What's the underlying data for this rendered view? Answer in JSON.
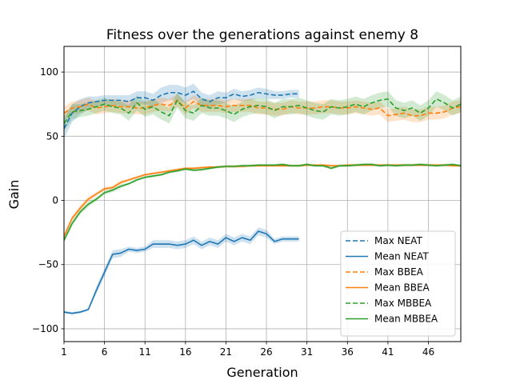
{
  "chart_data": {
    "type": "line",
    "title": "Fitness over the generations against enemy 8",
    "xlabel": "Generation",
    "ylabel": "Gain",
    "xlim": [
      1,
      50
    ],
    "ylim": [
      -110,
      120
    ],
    "xticks": [
      1,
      6,
      11,
      16,
      21,
      26,
      31,
      36,
      41,
      46
    ],
    "yticks": [
      -100,
      -50,
      0,
      50,
      100
    ],
    "grid": true,
    "legend_position": "lower-right",
    "series": [
      {
        "name": "Max NEAT",
        "color": "#1f77b4",
        "style": "dashed",
        "x": [
          1,
          2,
          3,
          4,
          5,
          6,
          7,
          8,
          9,
          10,
          11,
          12,
          13,
          14,
          15,
          16,
          17,
          18,
          19,
          20,
          21,
          22,
          23,
          24,
          25,
          26,
          27,
          28,
          29,
          30
        ],
        "values": [
          56,
          68,
          73,
          76,
          77,
          78,
          78,
          78,
          77,
          80,
          80,
          78,
          82,
          84,
          84,
          82,
          85,
          79,
          77,
          80,
          80,
          83,
          81,
          82,
          84,
          83,
          82,
          82,
          83,
          83
        ],
        "band": [
          8,
          7,
          6,
          5,
          4,
          4,
          4,
          4,
          5,
          5,
          5,
          5,
          6,
          6,
          6,
          6,
          6,
          5,
          5,
          5,
          4,
          4,
          4,
          4,
          4,
          4,
          3,
          3,
          3,
          3
        ]
      },
      {
        "name": "Mean NEAT",
        "color": "#1f77b4",
        "style": "solid",
        "x": [
          1,
          2,
          3,
          4,
          5,
          6,
          7,
          8,
          9,
          10,
          11,
          12,
          13,
          14,
          15,
          16,
          17,
          18,
          19,
          20,
          21,
          22,
          23,
          24,
          25,
          26,
          27,
          28,
          29,
          30
        ],
        "values": [
          -87,
          -88,
          -87,
          -85,
          -70,
          -56,
          -42,
          -41,
          -38,
          -39,
          -38,
          -34,
          -34,
          -34,
          -35,
          -34,
          -31,
          -35,
          -32,
          -34,
          -29,
          -32,
          -29,
          -31,
          -24,
          -26,
          -32,
          -30,
          -30,
          -30
        ],
        "band": [
          1,
          1,
          1,
          1,
          3,
          3,
          3,
          3,
          2,
          2,
          2,
          3,
          3,
          3,
          3,
          3,
          3,
          3,
          3,
          3,
          3,
          3,
          3,
          3,
          3,
          3,
          2,
          2,
          2,
          2
        ]
      },
      {
        "name": "Max BBEA",
        "color": "#ff7f0e",
        "style": "dashed",
        "x": [
          1,
          2,
          3,
          4,
          5,
          6,
          7,
          8,
          9,
          10,
          11,
          12,
          13,
          14,
          15,
          16,
          17,
          18,
          19,
          20,
          21,
          22,
          23,
          24,
          25,
          26,
          27,
          28,
          29,
          30,
          31,
          32,
          33,
          34,
          35,
          36,
          37,
          38,
          39,
          40,
          41,
          42,
          43,
          44,
          45,
          46,
          47,
          48,
          49,
          50
        ],
        "values": [
          68,
          72,
          73,
          75,
          72,
          73,
          74,
          73,
          73,
          72,
          72,
          74,
          75,
          74,
          78,
          72,
          77,
          74,
          74,
          74,
          73,
          74,
          74,
          74,
          72,
          72,
          71,
          71,
          73,
          72,
          72,
          72,
          73,
          73,
          72,
          72,
          73,
          72,
          71,
          72,
          66,
          67,
          68,
          66,
          66,
          68,
          68,
          69,
          72,
          73
        ],
        "band": [
          5,
          5,
          5,
          5,
          5,
          5,
          5,
          5,
          5,
          5,
          5,
          5,
          5,
          5,
          5,
          5,
          5,
          5,
          5,
          5,
          5,
          5,
          5,
          5,
          5,
          5,
          5,
          5,
          5,
          5,
          5,
          5,
          5,
          5,
          5,
          5,
          5,
          5,
          5,
          5,
          5,
          5,
          5,
          5,
          5,
          5,
          5,
          5,
          5,
          5
        ]
      },
      {
        "name": "Mean BBEA",
        "color": "#ff7f0e",
        "style": "solid",
        "x": [
          1,
          2,
          3,
          4,
          5,
          6,
          7,
          8,
          9,
          10,
          11,
          12,
          13,
          14,
          15,
          16,
          17,
          18,
          19,
          20,
          21,
          22,
          23,
          24,
          25,
          26,
          27,
          28,
          29,
          30,
          31,
          32,
          33,
          34,
          35,
          36,
          37,
          38,
          39,
          40,
          41,
          42,
          43,
          44,
          45,
          46,
          47,
          48,
          49,
          50
        ],
        "values": [
          -28,
          -14,
          -6,
          1,
          5,
          9,
          10,
          14,
          16,
          18,
          20,
          21,
          22,
          23,
          24,
          25,
          25,
          25.5,
          26,
          26,
          26.5,
          26.5,
          26.5,
          27,
          27,
          27,
          27,
          27,
          27,
          27,
          27.5,
          27.5,
          27.5,
          27,
          27,
          27.5,
          27.5,
          27.5,
          27.5,
          27.5,
          27.5,
          27.5,
          27.5,
          27.5,
          27.5,
          27.5,
          27.5,
          27.5,
          27,
          27
        ],
        "band": [
          2,
          2,
          2,
          2,
          1.5,
          1.5,
          1.5,
          1.5,
          1,
          1,
          1,
          1,
          1,
          1,
          1,
          1,
          1,
          1,
          1,
          1,
          1,
          1,
          1,
          1,
          1,
          1,
          1,
          1,
          1,
          1,
          1,
          1,
          1,
          1,
          1,
          1,
          1,
          1,
          1,
          1,
          1,
          1,
          1,
          1,
          1,
          1,
          1,
          1,
          1,
          1
        ]
      },
      {
        "name": "Max MBBEA",
        "color": "#2ca02c",
        "style": "dashed",
        "x": [
          1,
          2,
          3,
          4,
          5,
          6,
          7,
          8,
          9,
          10,
          11,
          12,
          13,
          14,
          15,
          16,
          17,
          18,
          19,
          20,
          21,
          22,
          23,
          24,
          25,
          26,
          27,
          28,
          29,
          30,
          31,
          32,
          33,
          34,
          35,
          36,
          37,
          38,
          39,
          40,
          41,
          42,
          43,
          44,
          45,
          46,
          47,
          48,
          49,
          50
        ],
        "values": [
          60,
          69,
          70,
          71,
          73,
          75,
          73,
          72,
          68,
          76,
          71,
          73,
          69,
          66,
          78,
          70,
          68,
          74,
          72,
          72,
          70,
          67,
          71,
          73,
          74,
          73,
          70,
          73,
          73,
          74,
          72,
          70,
          69,
          73,
          72,
          73,
          75,
          73,
          76,
          78,
          79,
          72,
          70,
          72,
          68,
          72,
          79,
          76,
          72,
          75
        ],
        "band": [
          6,
          6,
          5,
          5,
          5,
          5,
          5,
          5,
          6,
          6,
          6,
          6,
          6,
          6,
          6,
          6,
          6,
          6,
          6,
          6,
          6,
          6,
          6,
          6,
          6,
          6,
          6,
          6,
          6,
          6,
          6,
          6,
          6,
          6,
          6,
          6,
          6,
          6,
          6,
          6,
          6,
          6,
          6,
          6,
          6,
          6,
          6,
          6,
          6,
          6
        ]
      },
      {
        "name": "Mean MBBEA",
        "color": "#2ca02c",
        "style": "solid",
        "x": [
          1,
          2,
          3,
          4,
          5,
          6,
          7,
          8,
          9,
          10,
          11,
          12,
          13,
          14,
          15,
          16,
          17,
          18,
          19,
          20,
          21,
          22,
          23,
          24,
          25,
          26,
          27,
          28,
          29,
          30,
          31,
          32,
          33,
          34,
          35,
          36,
          37,
          38,
          39,
          40,
          41,
          42,
          43,
          44,
          45,
          46,
          47,
          48,
          49,
          50
        ],
        "values": [
          -31,
          -18,
          -9,
          -3,
          1,
          6,
          8,
          11,
          13,
          16,
          18,
          19,
          20,
          22,
          23,
          24.5,
          23.5,
          24,
          25,
          26,
          26.5,
          26.5,
          27,
          27,
          27.5,
          27.5,
          27.5,
          28,
          27,
          27,
          28,
          27,
          27,
          25,
          27,
          27,
          27.5,
          28,
          28,
          27,
          27.5,
          27,
          27.5,
          27.5,
          28,
          27.5,
          27,
          27.5,
          28,
          27
        ],
        "band": [
          2,
          2,
          2,
          2,
          1.5,
          1.5,
          1.5,
          1.5,
          1,
          1,
          1,
          1,
          1,
          1,
          1,
          1,
          1,
          1,
          1,
          1,
          1,
          1,
          1,
          1,
          1,
          1,
          1,
          1,
          1,
          1,
          1,
          1,
          1,
          1,
          1,
          1,
          1,
          1,
          1,
          1,
          1,
          1,
          1,
          1,
          1,
          1,
          1,
          1,
          1,
          1
        ]
      }
    ]
  }
}
